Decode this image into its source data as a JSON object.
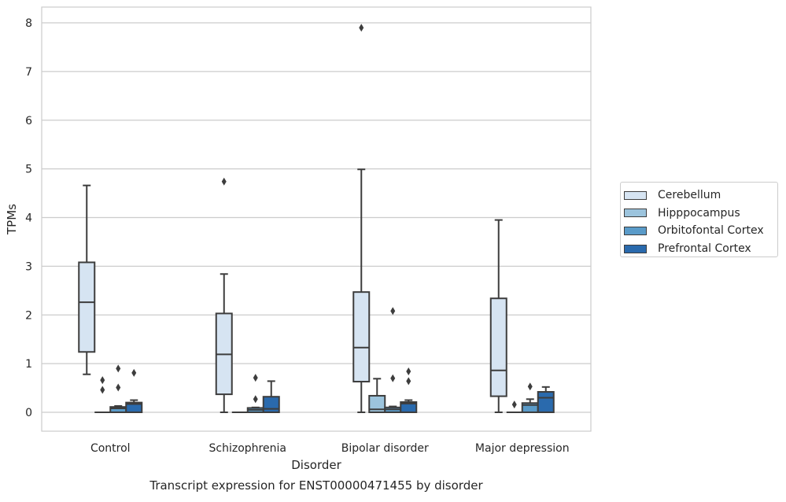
{
  "chart_data": {
    "type": "box",
    "title": "Transcript expression for ENST00000471455 by disorder",
    "xlabel": "Disorder",
    "ylabel": "TPMs",
    "ylim": [
      -0.38,
      8.3
    ],
    "yticks": [
      0,
      1,
      2,
      3,
      4,
      5,
      6,
      7,
      8
    ],
    "grid": "horizontal",
    "legend_position": "outside-right",
    "categories": [
      "Control",
      "Schizophrenia",
      "Bipolar disorder",
      "Major depression"
    ],
    "series": [
      {
        "name": "Cerebellum",
        "color": "#d6e4f2",
        "boxes": [
          {
            "whislo": 0.78,
            "q1": 1.24,
            "med": 2.26,
            "q3": 3.08,
            "whishi": 4.66,
            "fliers": []
          },
          {
            "whislo": 0.0,
            "q1": 0.37,
            "med": 1.19,
            "q3": 2.03,
            "whishi": 2.84,
            "fliers": [
              4.74
            ]
          },
          {
            "whislo": 0.0,
            "q1": 0.63,
            "med": 1.33,
            "q3": 2.47,
            "whishi": 4.99,
            "fliers": [
              7.9
            ]
          },
          {
            "whislo": 0.0,
            "q1": 0.33,
            "med": 0.86,
            "q3": 2.34,
            "whishi": 3.95,
            "fliers": []
          }
        ]
      },
      {
        "name": "Hipppocampus",
        "color": "#9cc4dd",
        "boxes": [
          {
            "whislo": 0.0,
            "q1": 0.0,
            "med": 0.0,
            "q3": 0.0,
            "whishi": 0.0,
            "fliers": [
              0.46,
              0.66
            ]
          },
          {
            "whislo": 0.0,
            "q1": 0.0,
            "med": 0.0,
            "q3": 0.0,
            "whishi": 0.0,
            "fliers": []
          },
          {
            "whislo": 0.0,
            "q1": 0.0,
            "med": 0.06,
            "q3": 0.34,
            "whishi": 0.69,
            "fliers": []
          },
          {
            "whislo": 0.0,
            "q1": 0.0,
            "med": 0.0,
            "q3": 0.0,
            "whishi": 0.0,
            "fliers": [
              0.16
            ]
          }
        ]
      },
      {
        "name": "Orbitofontal Cortex",
        "color": "#5a9bc9",
        "boxes": [
          {
            "whislo": 0.0,
            "q1": 0.0,
            "med": 0.08,
            "q3": 0.11,
            "whishi": 0.13,
            "fliers": [
              0.51,
              0.9
            ]
          },
          {
            "whislo": 0.0,
            "q1": 0.0,
            "med": 0.05,
            "q3": 0.09,
            "whishi": 0.1,
            "fliers": [
              0.27,
              0.71
            ]
          },
          {
            "whislo": 0.0,
            "q1": 0.0,
            "med": 0.06,
            "q3": 0.1,
            "whishi": 0.12,
            "fliers": [
              0.7,
              2.08
            ]
          },
          {
            "whislo": 0.0,
            "q1": 0.0,
            "med": 0.15,
            "q3": 0.19,
            "whishi": 0.27,
            "fliers": [
              0.53
            ]
          }
        ]
      },
      {
        "name": "Prefrontal Cortex",
        "color": "#2a6aad",
        "boxes": [
          {
            "whislo": 0.0,
            "q1": 0.0,
            "med": 0.17,
            "q3": 0.2,
            "whishi": 0.25,
            "fliers": [
              0.81
            ]
          },
          {
            "whislo": 0.0,
            "q1": 0.0,
            "med": 0.07,
            "q3": 0.32,
            "whishi": 0.64,
            "fliers": []
          },
          {
            "whislo": 0.0,
            "q1": 0.0,
            "med": 0.18,
            "q3": 0.21,
            "whishi": 0.25,
            "fliers": [
              0.64,
              0.84
            ]
          },
          {
            "whislo": 0.0,
            "q1": 0.0,
            "med": 0.3,
            "q3": 0.42,
            "whishi": 0.52,
            "fliers": []
          }
        ]
      }
    ]
  }
}
